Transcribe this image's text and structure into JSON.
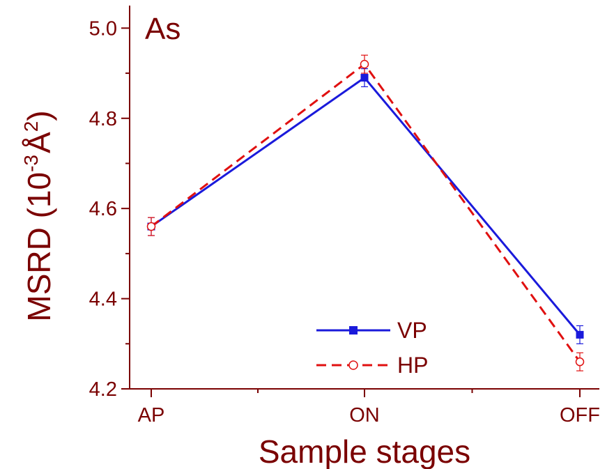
{
  "colors": {
    "axis": "#7a0000",
    "vp": "#1a1adb",
    "hp": "#e01010"
  },
  "chart_data": {
    "type": "line",
    "title": "",
    "panel_label": "As",
    "xlabel": "Sample stages",
    "ylabel_main": "MSRD (10",
    "ylabel_exp1": "-3",
    "ylabel_unit": "Å",
    "ylabel_exp2": "2",
    "ylabel_close": ")",
    "categories": [
      "AP",
      "ON",
      "OFF"
    ],
    "ylim": [
      4.2,
      5.05
    ],
    "yticks": [
      4.2,
      4.4,
      4.6,
      4.8,
      5.0
    ],
    "ytick_labels": [
      "4.2",
      "4.4",
      "4.6",
      "4.8",
      "5.0"
    ],
    "legend_position": "bottom-center",
    "grid": false,
    "series": [
      {
        "name": "VP",
        "values": [
          4.56,
          4.89,
          4.32
        ],
        "errors": [
          0.02,
          0.02,
          0.02
        ],
        "color": "#1a1adb",
        "line": "solid",
        "marker": "filled-square"
      },
      {
        "name": "HP",
        "values": [
          4.56,
          4.92,
          4.26
        ],
        "errors": [
          0.02,
          0.02,
          0.02
        ],
        "color": "#e01010",
        "line": "dashed",
        "marker": "open-circle"
      }
    ]
  }
}
